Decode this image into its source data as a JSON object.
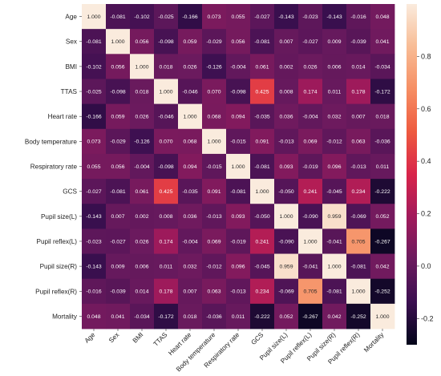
{
  "chart_data": {
    "type": "heatmap",
    "title": "",
    "xlabel": "",
    "ylabel": "",
    "labels": [
      "Age",
      "Sex",
      "BMI",
      "TTAS",
      "Heart rate",
      "Body temperature",
      "Respiratory rate",
      "GCS",
      "Pupil size(L)",
      "Pupil reflex(L)",
      "Pupil size(R)",
      "Pupil reflex(R)",
      "Mortality"
    ],
    "matrix": [
      [
        "1.000",
        "-0.081",
        "-0.102",
        "-0.025",
        "-0.166",
        "0.073",
        "0.055",
        "-0.027",
        "-0.143",
        "-0.023",
        "-0.143",
        "-0.016",
        "0.048"
      ],
      [
        "-0.081",
        "1.000",
        "0.056",
        "-0.098",
        "0.059",
        "-0.029",
        "0.056",
        "-0.081",
        "0.007",
        "-0.027",
        "0.009",
        "-0.039",
        "0.041"
      ],
      [
        "-0.102",
        "0.056",
        "1.000",
        "0.018",
        "0.026",
        "-0.126",
        "-0.004",
        "0.061",
        "0.002",
        "0.026",
        "0.006",
        "0.014",
        "-0.034"
      ],
      [
        "-0.025",
        "-0.098",
        "0.018",
        "1.000",
        "-0.046",
        "0.070",
        "-0.098",
        "0.425",
        "0.008",
        "0.174",
        "0.011",
        "0.178",
        "-0.172"
      ],
      [
        "-0.166",
        "0.059",
        "0.026",
        "-0.046",
        "1.000",
        "0.068",
        "0.094",
        "-0.035",
        "0.036",
        "-0.004",
        "0.032",
        "0.007",
        "0.018"
      ],
      [
        "0.073",
        "-0.029",
        "-0.126",
        "0.070",
        "0.068",
        "1.000",
        "-0.015",
        "0.091",
        "-0.013",
        "0.069",
        "-0.012",
        "0.063",
        "-0.036"
      ],
      [
        "0.055",
        "0.056",
        "-0.004",
        "-0.098",
        "0.094",
        "-0.015",
        "1.000",
        "-0.081",
        "0.093",
        "-0.019",
        "0.096",
        "-0.013",
        "0.011"
      ],
      [
        "-0.027",
        "-0.081",
        "0.061",
        "0.425",
        "-0.035",
        "0.091",
        "-0.081",
        "1.000",
        "-0.050",
        "0.241",
        "-0.045",
        "0.234",
        "-0.222"
      ],
      [
        "-0.143",
        "0.007",
        "0.002",
        "0.008",
        "0.036",
        "-0.013",
        "0.093",
        "-0.050",
        "1.000",
        "-0.090",
        "0.959",
        "-0.069",
        "0.052"
      ],
      [
        "-0.023",
        "-0.027",
        "0.026",
        "0.174",
        "-0.004",
        "0.069",
        "-0.019",
        "0.241",
        "-0.090",
        "1.000",
        "-0.041",
        "0.705",
        "-0.267"
      ],
      [
        "-0.143",
        "0.009",
        "0.006",
        "0.011",
        "0.032",
        "-0.012",
        "0.096",
        "-0.045",
        "0.959",
        "-0.041",
        "1.000",
        "-0.081",
        "0.042"
      ],
      [
        "-0.016",
        "-0.039",
        "0.014",
        "0.178",
        "0.007",
        "0.063",
        "-0.013",
        "0.234",
        "-0.069",
        "0.705",
        "-0.081",
        "1.000",
        "-0.252"
      ],
      [
        "0.048",
        "0.041",
        "-0.034",
        "-0.172",
        "0.018",
        "-0.036",
        "0.011",
        "-0.222",
        "0.052",
        "-0.267",
        "0.042",
        "-0.252",
        "1.000"
      ]
    ],
    "colorbar": {
      "min": -0.3,
      "max": 1.0,
      "ticks": [
        "0.8",
        "0.6",
        "0.4",
        "0.2",
        "0.0",
        "-0.2"
      ],
      "tick_values": [
        0.8,
        0.6,
        0.4,
        0.2,
        0.0,
        -0.2
      ],
      "colormap": "rocket",
      "stops": [
        "#03051a",
        "#3b0f50",
        "#6b1a5e",
        "#a11a5b",
        "#d8244a",
        "#ee5a3f",
        "#f68e63",
        "#f8bc95",
        "#faebdd"
      ]
    },
    "legend": "right",
    "grid": false
  }
}
